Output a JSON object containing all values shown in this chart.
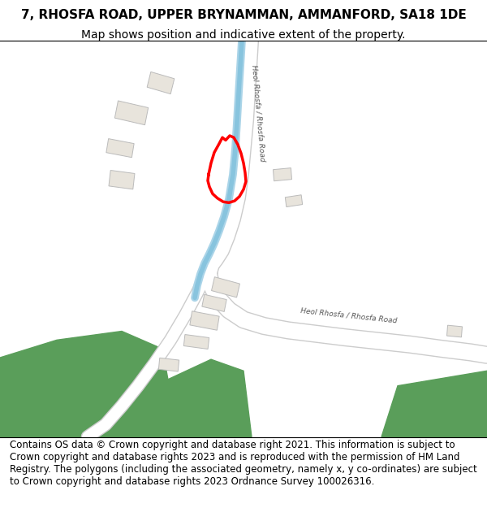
{
  "title": "7, RHOSFA ROAD, UPPER BRYNAMMAN, AMMANFORD, SA18 1DE",
  "subtitle": "Map shows position and indicative extent of the property.",
  "footer": "Contains OS data © Crown copyright and database right 2021. This information is subject to Crown copyright and database rights 2023 and is reproduced with the permission of HM Land Registry. The polygons (including the associated geometry, namely x, y co-ordinates) are subject to Crown copyright and database rights 2023 Ordnance Survey 100026316.",
  "bg_color": "#f0ede8",
  "road_color": "#ffffff",
  "road_outline_color": "#cccccc",
  "river_color": "#aad4e8",
  "river_color2": "#88c4de",
  "building_color": "#e8e4dc",
  "building_outline_color": "#bbbbbb",
  "plot_color": "#ff0000",
  "green_color": "#5a9e5a",
  "title_fontsize": 11,
  "subtitle_fontsize": 10,
  "footer_fontsize": 8.5
}
